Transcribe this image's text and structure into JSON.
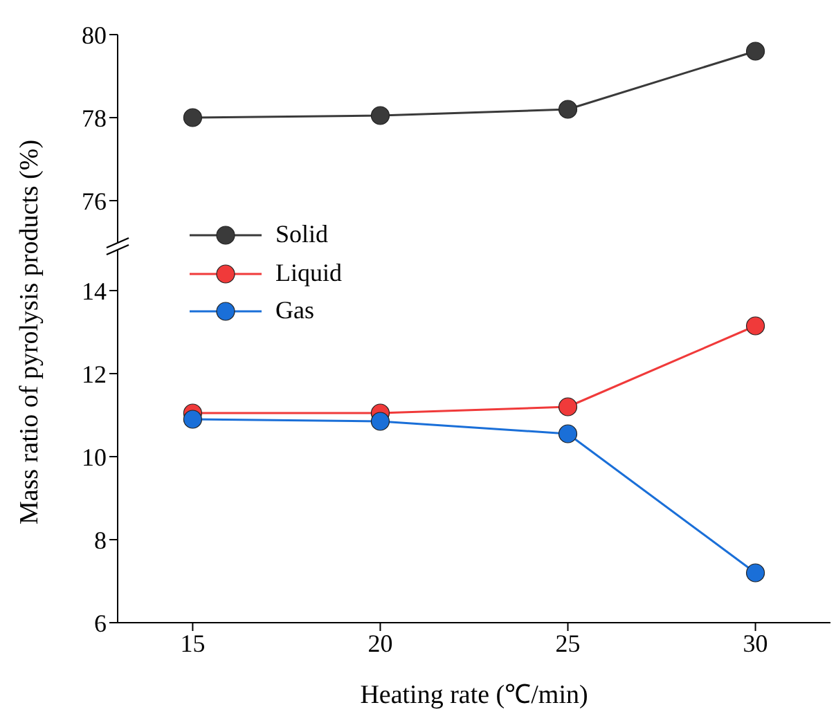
{
  "chart_data": [
    {
      "type": "line",
      "x": [
        15,
        20,
        25,
        30
      ],
      "series": [
        {
          "name": "Solid",
          "color": "#3a3a3a",
          "values": [
            78.0,
            78.05,
            78.2,
            79.6
          ]
        }
      ],
      "ylim": [
        75,
        80
      ],
      "yticks": [
        76,
        78,
        80
      ],
      "tick_labels": "y",
      "marker": "circle",
      "legend": "bottom left"
    },
    {
      "type": "line",
      "x": [
        15,
        20,
        25,
        30
      ],
      "series": [
        {
          "name": "Liquid",
          "color": "#f03a3a",
          "values": [
            11.05,
            11.05,
            11.2,
            13.15
          ]
        },
        {
          "name": "Gas",
          "color": "#1a6fd8",
          "values": [
            10.9,
            10.85,
            10.55,
            7.2
          ]
        }
      ],
      "xlim": [
        13,
        32
      ],
      "xticks": [
        15,
        20,
        25,
        30
      ],
      "ylim": [
        6,
        15
      ],
      "yticks": [
        6,
        8,
        10,
        12,
        14
      ],
      "xlabel": "Heating rate (℃/min)",
      "ylabel": "Mass ratio of pyrolysis products (%)",
      "marker": "circle",
      "legend": "top left"
    }
  ]
}
